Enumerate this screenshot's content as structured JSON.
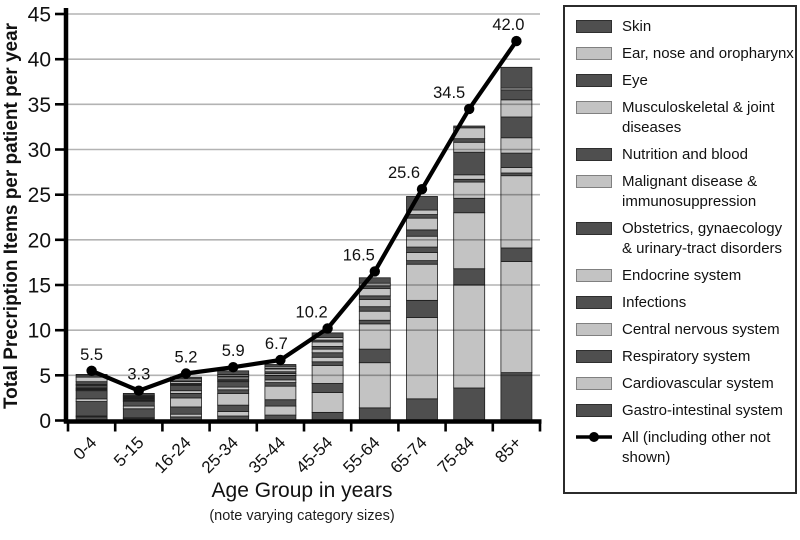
{
  "chart_data": {
    "type": "stacked-bar-with-line",
    "title": "",
    "ylabel": "Total Precription Items per patient per year",
    "xlabel": "Age Group in years",
    "xlabel_note": "(note varying category sizes)",
    "ylim": [
      0,
      45
    ],
    "ytick_step": 5,
    "grid": true,
    "legend_position": "right",
    "categories": [
      "0-4",
      "5-15",
      "16-24",
      "25-34",
      "35-44",
      "45-54",
      "55-64",
      "65-74",
      "75-84",
      "85+"
    ],
    "series": [
      {
        "name": "Skin",
        "label": "Skin",
        "shade": "dark",
        "values": [
          0.3,
          0.2,
          0.2,
          0.4,
          0.2,
          0.5,
          0.6,
          1.5,
          0.2,
          2.3
        ]
      },
      {
        "name": "Ear, nose and oropharynx",
        "label": "Ear, nose and oropharynx",
        "shade": "light",
        "values": [
          0.5,
          0.1,
          0.2,
          0.2,
          0.2,
          0.3,
          0.3,
          0.5,
          1.2,
          0.2
        ]
      },
      {
        "name": "Eye",
        "label": "Eye",
        "shade": "dark",
        "values": [
          0.3,
          0.1,
          0.1,
          0.1,
          0.1,
          0.2,
          0.3,
          0.4,
          0.4,
          1.1
        ]
      },
      {
        "name": "Musculoskeletal & joint diseases",
        "label": "Musculoskeletal & joint\ndiseases",
        "shade": "light",
        "values": [
          0.1,
          0.1,
          0.2,
          0.2,
          0.3,
          0.5,
          0.8,
          1.3,
          1.1,
          1.9
        ]
      },
      {
        "name": "Nutrition and blood",
        "label": "Nutrition and blood",
        "shade": "dark",
        "values": [
          0.3,
          0.1,
          0.1,
          0.2,
          0.2,
          0.3,
          0.4,
          0.7,
          2.5,
          2.3
        ]
      },
      {
        "name": "Malignant disease & immunosuppression",
        "label": "Malignant disease &\nimmunosuppression",
        "shade": "light",
        "values": [
          0.1,
          0.1,
          0.1,
          0.1,
          0.2,
          0.4,
          0.8,
          1.2,
          0.5,
          1.7
        ]
      },
      {
        "name": "Obstetrics, gynaecology & urinary-tract disorders",
        "label": "Obstetrics, gynaecology\n& urinary-tract disorders",
        "shade": "dark",
        "values": [
          0.1,
          0.1,
          0.6,
          0.6,
          0.5,
          0.5,
          0.5,
          0.6,
          0.3,
          1.6
        ]
      },
      {
        "name": "Endocrine system",
        "label": "Endocrine system",
        "shade": "light",
        "values": [
          0.1,
          0.1,
          0.3,
          0.3,
          0.3,
          0.5,
          1.0,
          0.9,
          1.8,
          0.6
        ]
      },
      {
        "name": "Infections",
        "label": "Infections",
        "shade": "dark",
        "values": [
          0.9,
          0.5,
          0.5,
          0.4,
          0.4,
          0.4,
          0.4,
          0.4,
          1.6,
          0.3
        ]
      },
      {
        "name": "Central nervous system",
        "label": "Central nervous system",
        "shade": "light",
        "values": [
          0.3,
          0.3,
          1.0,
          1.3,
          1.5,
          2.0,
          2.8,
          4.0,
          6.2,
          8.0
        ]
      },
      {
        "name": "Respiratory system",
        "label": "Respiratory system",
        "shade": "dark",
        "values": [
          1.6,
          1.0,
          0.8,
          0.7,
          0.7,
          1.0,
          1.5,
          1.9,
          1.8,
          1.5
        ]
      },
      {
        "name": "Cardiovascular system",
        "label": "Cardiovascular system",
        "shade": "light",
        "values": [
          0.1,
          0.1,
          0.3,
          0.5,
          1.0,
          2.2,
          5.0,
          9.0,
          11.4,
          12.3
        ]
      },
      {
        "name": "Gastro-intestinal system",
        "label": "Gastro-intestinal system",
        "shade": "dark",
        "values": [
          0.4,
          0.2,
          0.4,
          0.5,
          0.6,
          0.9,
          1.4,
          2.4,
          3.6,
          5.3
        ]
      }
    ],
    "line_series": {
      "name": "All (including other not shown)",
      "label": "All (including other not\nshown)",
      "values": [
        5.5,
        3.3,
        5.2,
        5.9,
        6.7,
        10.2,
        16.5,
        25.6,
        34.5,
        42.0
      ],
      "point_labels": [
        "5.5",
        "3.3",
        "5.2",
        "5.9",
        "6.7",
        "10.2",
        "16.5",
        "25.6",
        "34.5",
        "42.0"
      ]
    },
    "colors": {
      "dark": "#4f4f4f",
      "light": "#c3c3c3",
      "segment_border": "#1c1c1c",
      "line": "#000000",
      "axis": "#000000",
      "grid": "#b3b3b3"
    },
    "yticks": [
      0,
      5,
      10,
      15,
      20,
      25,
      30,
      35,
      40,
      45
    ]
  }
}
